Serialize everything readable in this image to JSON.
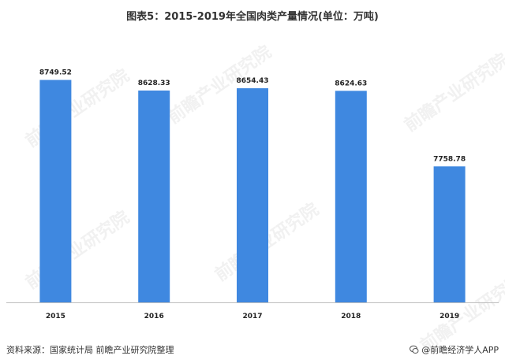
{
  "page": {
    "title": "图表5：2015-2019年全国肉类产量情况(单位：万吨)",
    "source": "资料来源：国家统计局 前瞻产业研究院整理",
    "brand": "@前瞻经济学人APP",
    "watermark": "前瞻产业研究院"
  },
  "colors": {
    "bar": "#3F88E0",
    "axis": "#BFBFBF",
    "text": "#222222"
  },
  "chart_data": {
    "type": "bar",
    "title": "图表5：2015-2019年全国肉类产量情况(单位：万吨)",
    "categories": [
      "2015",
      "2016",
      "2017",
      "2018",
      "2019"
    ],
    "values": [
      8749.52,
      8628.33,
      8654.43,
      8624.63,
      7758.78
    ],
    "value_labels": [
      "8749.52",
      "8628.33",
      "8654.43",
      "8624.63",
      "7758.78"
    ],
    "xlabel": "",
    "ylabel": "",
    "ylim": [
      6200,
      8980
    ],
    "grid": false,
    "legend": "none"
  }
}
